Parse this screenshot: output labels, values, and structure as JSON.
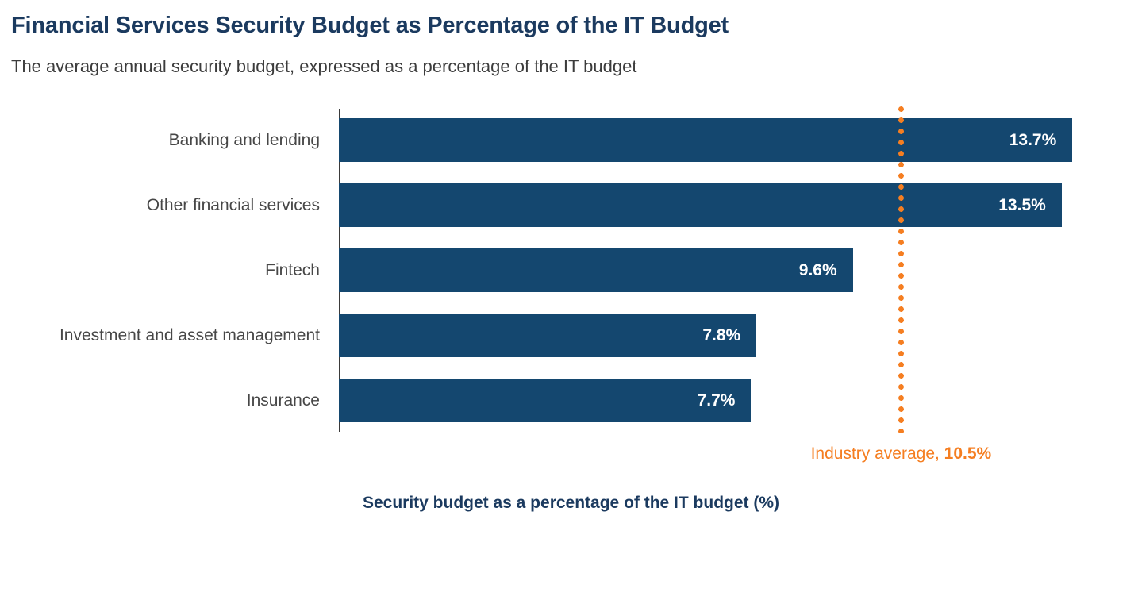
{
  "header": {
    "title": "Financial Services Security Budget as Percentage of the IT Budget",
    "subtitle": "The average annual security budget, expressed as a percentage of the IT budget"
  },
  "chart_data": {
    "type": "bar",
    "orientation": "horizontal",
    "title": "Financial Services Security Budget as Percentage of the IT Budget",
    "subtitle": "The average annual security budget, expressed as a percentage of the IT budget",
    "categories": [
      "Banking and lending",
      "Other financial services",
      "Fintech",
      "Investment and asset management",
      "Insurance"
    ],
    "values": [
      13.7,
      13.5,
      9.6,
      7.8,
      7.7
    ],
    "value_labels": [
      "13.7%",
      "13.5%",
      "9.6%",
      "7.8%",
      "7.7%"
    ],
    "xlim": [
      0,
      15
    ],
    "xlabel": "Security budget as a percentage of the IT budget (%)",
    "ylabel": "",
    "grid": false,
    "legend": false,
    "bar_color": "#14476F",
    "average_line": {
      "value": 10.5,
      "label_prefix": "Industry average, ",
      "label_value": "10.5%",
      "color": "#F57E21",
      "style": "dotted"
    }
  }
}
